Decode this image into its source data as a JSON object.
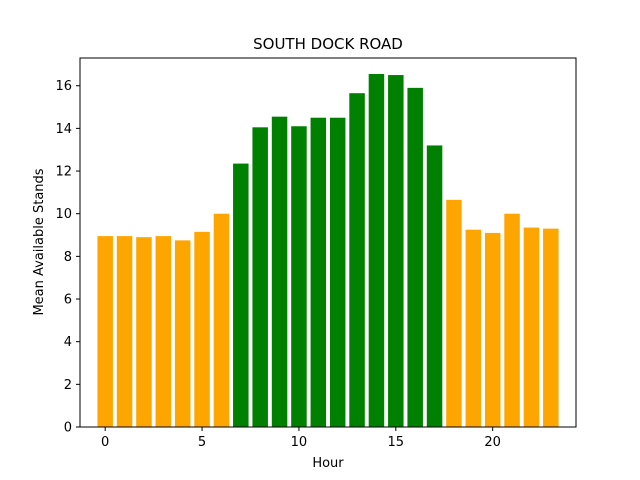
{
  "chart_data": {
    "type": "bar",
    "title": "SOUTH DOCK ROAD",
    "xlabel": "Hour",
    "ylabel": "Mean Available Stands",
    "categories": [
      0,
      1,
      2,
      3,
      4,
      5,
      6,
      7,
      8,
      9,
      10,
      11,
      12,
      13,
      14,
      15,
      16,
      17,
      18,
      19,
      20,
      21,
      22,
      23
    ],
    "values": [
      8.95,
      8.95,
      8.9,
      8.95,
      8.75,
      9.15,
      10.0,
      12.35,
      14.05,
      14.55,
      14.1,
      14.5,
      14.5,
      15.65,
      16.55,
      16.5,
      15.9,
      13.2,
      10.65,
      9.25,
      9.1,
      10.0,
      9.35,
      9.3
    ],
    "bar_colors": [
      "#ffa500",
      "#ffa500",
      "#ffa500",
      "#ffa500",
      "#ffa500",
      "#ffa500",
      "#ffa500",
      "#008000",
      "#008000",
      "#008000",
      "#008000",
      "#008000",
      "#008000",
      "#008000",
      "#008000",
      "#008000",
      "#008000",
      "#008000",
      "#ffa500",
      "#ffa500",
      "#ffa500",
      "#ffa500",
      "#ffa500",
      "#ffa500"
    ],
    "xlim": [
      -1.3,
      24.3
    ],
    "ylim": [
      0,
      17.3
    ],
    "xticks": [
      0,
      5,
      10,
      15,
      20
    ],
    "yticks": [
      0,
      2,
      4,
      6,
      8,
      10,
      12,
      14,
      16
    ],
    "grid": false,
    "legend": "none"
  }
}
